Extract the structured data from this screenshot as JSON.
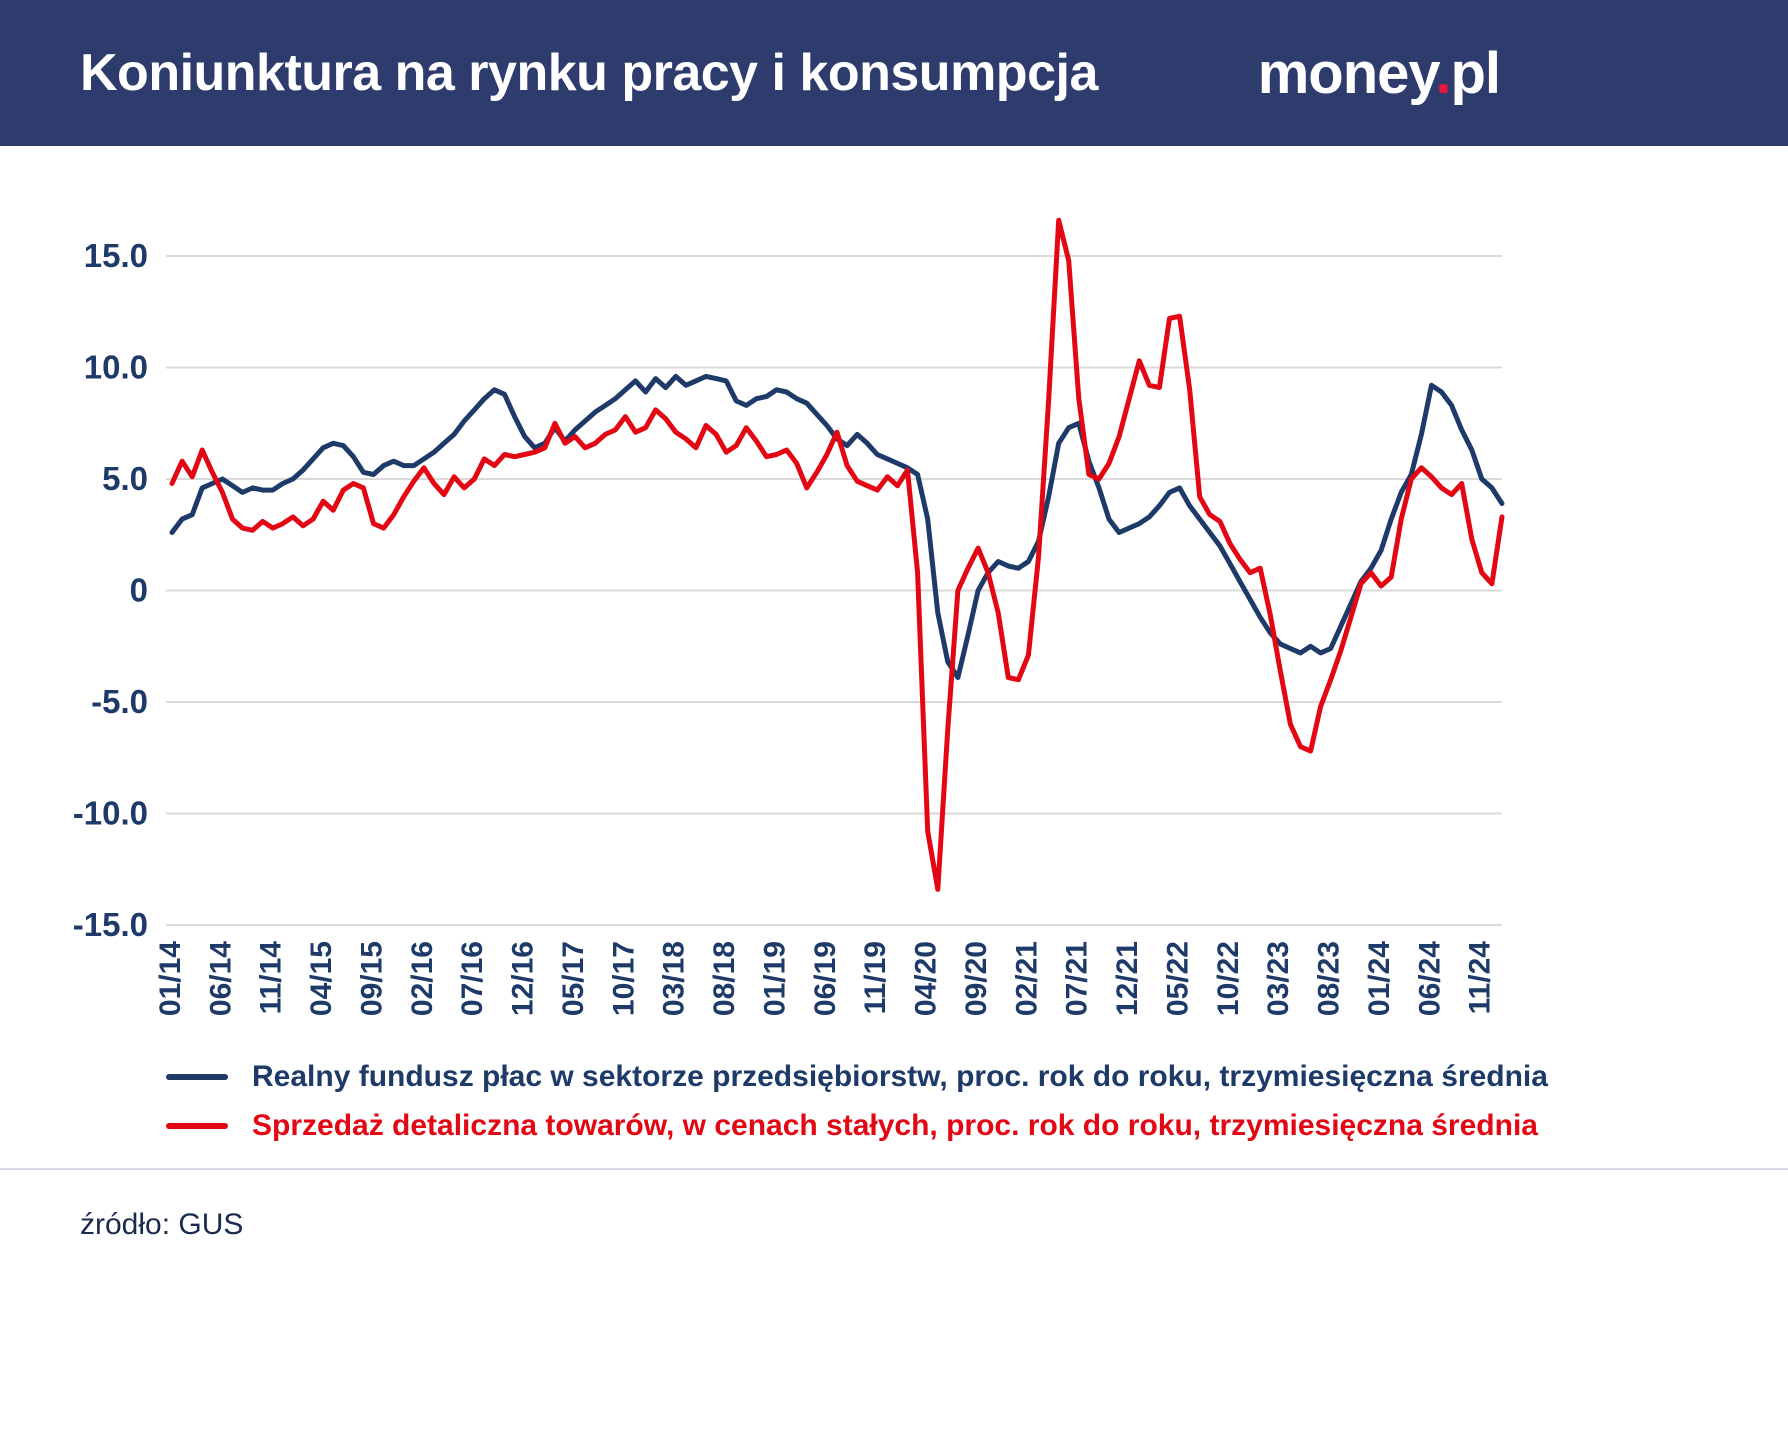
{
  "header": {
    "title": "Koniunktura na rynku pracy i konsumpcja",
    "logo": {
      "money": "money",
      "dot": ".",
      "pl": "pl"
    }
  },
  "colors": {
    "header_bg": "#2d3b6d",
    "navy": "#1e3a68",
    "red": "#e30613",
    "grid": "#d9d9d9",
    "logo_dot": "#e5173c",
    "axis_text": "#1e3a68"
  },
  "chart_data": {
    "type": "line",
    "title": "Koniunktura na rynku pracy i konsumpcja",
    "x_start": "01/14",
    "x_frequency": "monthly",
    "x_tick_interval": 5,
    "x_tick_labels": [
      "01/14",
      "06/14",
      "11/14",
      "04/15",
      "09/15",
      "02/16",
      "07/16",
      "12/16",
      "05/17",
      "10/17",
      "03/18",
      "08/18",
      "01/19",
      "06/19",
      "11/19",
      "04/20",
      "09/20",
      "02/21",
      "07/21",
      "12/21",
      "05/22",
      "10/22",
      "03/23",
      "08/23",
      "01/24",
      "06/24",
      "11/24"
    ],
    "y_ticks": [
      15,
      10,
      5,
      0,
      -5,
      -10,
      -15
    ],
    "y_tick_labels": [
      "15.0",
      "10.0",
      "5.0",
      "0",
      "-5.0",
      "-10.0",
      "-15.0"
    ],
    "ylim": [
      -15,
      17
    ],
    "grid": "horizontal",
    "legend_position": "bottom-left",
    "series": [
      {
        "name": "Realny fundusz płac w sektorze przedsiębiorstw, proc. rok do roku, trzymiesięczna średnia",
        "color": "#1e3a68",
        "values": [
          2.6,
          3.2,
          3.4,
          4.6,
          4.8,
          5.0,
          4.7,
          4.4,
          4.6,
          4.5,
          4.5,
          4.8,
          5.0,
          5.4,
          5.9,
          6.4,
          6.6,
          6.5,
          6.0,
          5.3,
          5.2,
          5.6,
          5.8,
          5.6,
          5.6,
          5.9,
          6.2,
          6.6,
          7.0,
          7.6,
          8.1,
          8.6,
          9.0,
          8.8,
          7.8,
          6.9,
          6.4,
          6.6,
          7.3,
          6.7,
          7.2,
          7.6,
          8.0,
          8.3,
          8.6,
          9.0,
          9.4,
          8.9,
          9.5,
          9.1,
          9.6,
          9.2,
          9.4,
          9.6,
          9.5,
          9.4,
          8.5,
          8.3,
          8.6,
          8.7,
          9.0,
          8.9,
          8.6,
          8.4,
          7.9,
          7.4,
          6.8,
          6.5,
          7.0,
          6.6,
          6.1,
          5.9,
          5.7,
          5.5,
          5.2,
          3.2,
          -1.0,
          -3.2,
          -3.9,
          -2.0,
          0.0,
          0.8,
          1.3,
          1.1,
          1.0,
          1.3,
          2.2,
          4.2,
          6.6,
          7.3,
          7.5,
          5.8,
          4.6,
          3.2,
          2.6,
          2.8,
          3.0,
          3.3,
          3.8,
          4.4,
          4.6,
          3.8,
          3.2,
          2.6,
          2.0,
          1.2,
          0.4,
          -0.4,
          -1.2,
          -1.9,
          -2.4,
          -2.6,
          -2.8,
          -2.5,
          -2.8,
          -2.6,
          -1.6,
          -0.6,
          0.4,
          1.0,
          1.8,
          3.2,
          4.4,
          5.2,
          7.0,
          9.2,
          8.9,
          8.3,
          7.2,
          6.3,
          5.0,
          4.6,
          3.9
        ]
      },
      {
        "name": "Sprzedaż detaliczna towarów, w cenach stałych, proc. rok do roku, trzymiesięczna średnia",
        "color": "#e30613",
        "values": [
          4.8,
          5.8,
          5.1,
          6.3,
          5.3,
          4.4,
          3.2,
          2.8,
          2.7,
          3.1,
          2.8,
          3.0,
          3.3,
          2.9,
          3.2,
          4.0,
          3.6,
          4.5,
          4.8,
          4.6,
          3.0,
          2.8,
          3.4,
          4.2,
          4.9,
          5.5,
          4.8,
          4.3,
          5.1,
          4.6,
          5.0,
          5.9,
          5.6,
          6.1,
          6.0,
          6.1,
          6.2,
          6.4,
          7.5,
          6.6,
          6.9,
          6.4,
          6.6,
          7.0,
          7.2,
          7.8,
          7.1,
          7.3,
          8.1,
          7.7,
          7.1,
          6.8,
          6.4,
          7.4,
          7.0,
          6.2,
          6.5,
          7.3,
          6.7,
          6.0,
          6.1,
          6.3,
          5.7,
          4.6,
          5.3,
          6.1,
          7.1,
          5.6,
          4.9,
          4.7,
          4.5,
          5.1,
          4.7,
          5.4,
          0.8,
          -10.8,
          -13.4,
          -6.2,
          0.0,
          1.0,
          1.9,
          0.8,
          -1.0,
          -3.9,
          -4.0,
          -2.9,
          1.5,
          8.5,
          16.6,
          14.8,
          8.6,
          5.2,
          5.0,
          5.7,
          6.9,
          8.6,
          10.3,
          9.2,
          9.1,
          12.2,
          12.3,
          9.0,
          4.2,
          3.4,
          3.1,
          2.1,
          1.4,
          0.8,
          1.0,
          -1.1,
          -3.6,
          -6.0,
          -7.0,
          -7.2,
          -5.2,
          -4.0,
          -2.7,
          -1.2,
          0.3,
          0.8,
          0.2,
          0.6,
          3.2,
          5.0,
          5.5,
          5.1,
          4.6,
          4.3,
          4.8,
          2.3,
          0.8,
          0.3,
          3.3
        ]
      }
    ]
  },
  "footer": {
    "source": "źródło: GUS"
  }
}
